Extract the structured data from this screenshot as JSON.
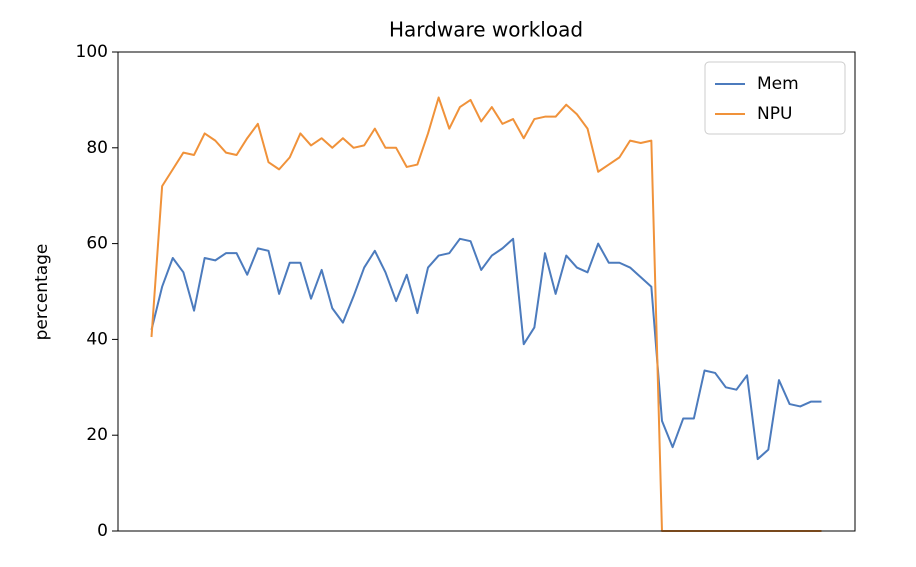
{
  "chart_data": {
    "type": "line",
    "title": "Hardware workload",
    "ylabel": "percentage",
    "categories": [
      null,
      null,
      null,
      null,
      null,
      null,
      null,
      null,
      null,
      null,
      null,
      null,
      null,
      null,
      null,
      null,
      null,
      null,
      null,
      null,
      null,
      null,
      null,
      null,
      null,
      null,
      null,
      null,
      null,
      null,
      null,
      null,
      null,
      null,
      null,
      null,
      null,
      null,
      null,
      null,
      null,
      null,
      null,
      null,
      null,
      null,
      null,
      null,
      null,
      null,
      null,
      null,
      null,
      null,
      null,
      null,
      null,
      null,
      null,
      null,
      null,
      null,
      null,
      null
    ],
    "series": [
      {
        "name": "Mem",
        "color": "#4c7bbd",
        "values": [
          42,
          51,
          57,
          54,
          46,
          57,
          56.5,
          58,
          58,
          53.5,
          59,
          58.5,
          49.5,
          56,
          56,
          48.5,
          54.5,
          46.5,
          43.5,
          49,
          55,
          58.5,
          54,
          48,
          53.5,
          45.5,
          55,
          57.5,
          58,
          61,
          60.5,
          54.5,
          57.5,
          59,
          61,
          39,
          42.5,
          58,
          49.5,
          57.5,
          55,
          54,
          60,
          56,
          56,
          55,
          53,
          51,
          23,
          17.5,
          23.5,
          23.5,
          33.5,
          33,
          30,
          29.5,
          32.5,
          15,
          17,
          31.5,
          26.5,
          26,
          27,
          27
        ]
      },
      {
        "name": "NPU",
        "color": "#f0923a",
        "values": [
          40.5,
          72,
          75.5,
          79,
          78.5,
          83,
          81.5,
          79,
          78.5,
          82,
          85,
          77,
          75.5,
          78,
          83,
          80.5,
          82,
          80,
          82,
          80,
          80.5,
          84,
          80,
          80,
          76,
          76.5,
          83,
          90.5,
          84,
          88.5,
          90,
          85.5,
          88.5,
          85,
          86,
          82,
          86,
          86.5,
          86.5,
          89,
          87,
          84,
          75,
          76.5,
          78,
          81.5,
          81,
          81.5,
          0,
          0,
          0,
          0,
          0,
          0,
          0,
          0,
          0,
          0,
          0,
          0,
          0,
          0,
          0,
          0
        ]
      }
    ],
    "ylim": [
      0,
      100
    ],
    "yticks": [
      0,
      20,
      40,
      60,
      80,
      100
    ],
    "grid": false,
    "legend": "upper right"
  }
}
